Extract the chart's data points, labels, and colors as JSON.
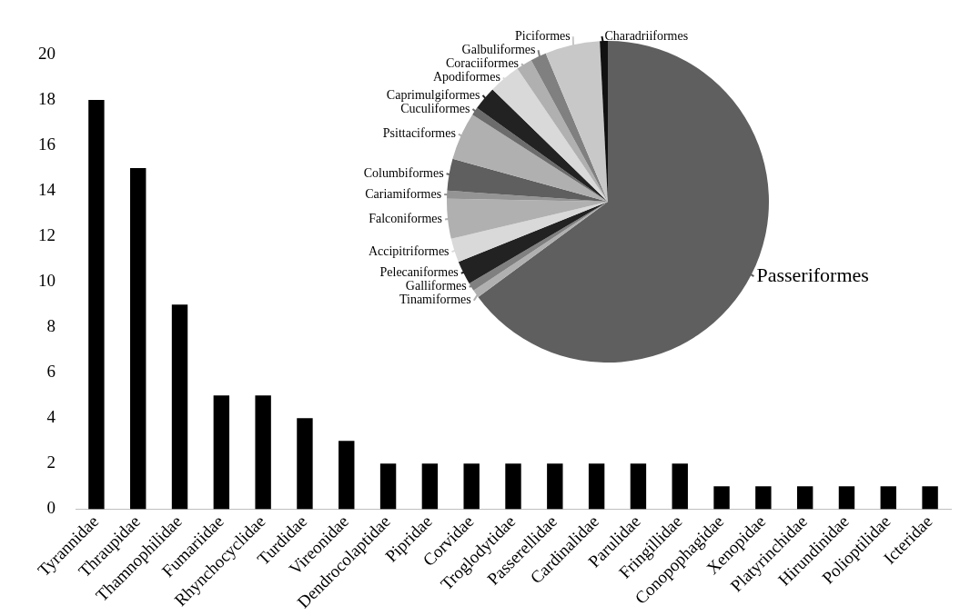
{
  "chart_data": [
    {
      "type": "bar",
      "categories": [
        "Tyrannidae",
        "Thraupidae",
        "Thamnophilidae",
        "Fumariidae",
        "Rhynchocyclidae",
        "Turdidae",
        "Vireonidae",
        "Dendrocolaptidae",
        "Pipridae",
        "Corvidae",
        "Troglodytidae",
        "Passerellidae",
        "Cardinalidae",
        "Parulidae",
        "Fringillidae",
        "Conopophagidae",
        "Xenopidae",
        "Platyrinchidae",
        "Hirundinidae",
        "Polioptilidae",
        "Icteridae"
      ],
      "values": [
        18,
        15,
        9,
        5,
        5,
        4,
        3,
        2,
        2,
        2,
        2,
        2,
        2,
        2,
        2,
        1,
        1,
        1,
        1,
        1,
        1
      ],
      "color": "#000000",
      "ylim": [
        0,
        20
      ],
      "yticks": [
        0,
        2,
        4,
        6,
        8,
        10,
        12,
        14,
        16,
        18,
        20
      ],
      "grid": false
    },
    {
      "type": "pie",
      "categories": [
        "Passeriformes",
        "Tinamiformes",
        "Galliformes",
        "Pelecaniformes",
        "Accipitriformes",
        "Falconiformes",
        "Cariamiformes",
        "Columbiformes",
        "Psittaciformes",
        "Cuculiformes",
        "Caprimulgiformes",
        "Apodiformes",
        "Coraciiformes",
        "Galbuliformes",
        "Piciformes",
        "Charadriiformes"
      ],
      "values": [
        64.9,
        0.8,
        0.8,
        2.4,
        2.4,
        4.0,
        0.8,
        3.2,
        4.8,
        0.8,
        2.4,
        3.2,
        1.6,
        1.6,
        5.5,
        0.8
      ],
      "colors": [
        "#5f5f5f",
        "#b0b0b0",
        "#808080",
        "#222222",
        "#d9d9d9",
        "#b0b0b0",
        "#949494",
        "#5f5f5f",
        "#b0b0b0",
        "#6c6c6c",
        "#222222",
        "#d9d9d9",
        "#b0b0b0",
        "#808080",
        "#c8c8c8",
        "#111111"
      ]
    }
  ]
}
